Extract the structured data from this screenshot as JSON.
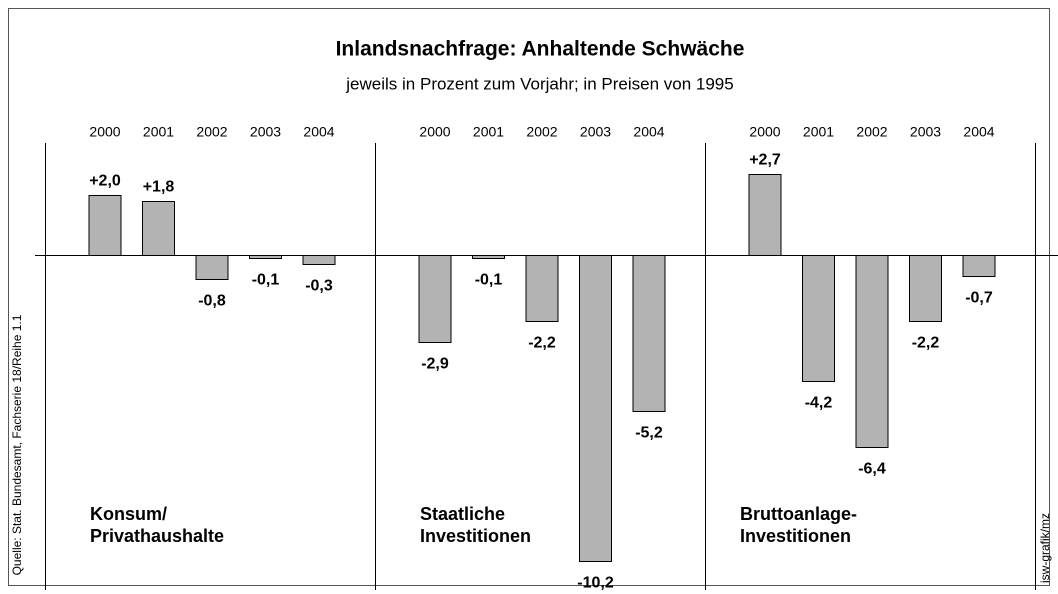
{
  "title": "Inlandsnachfrage: Anhaltende Schwäche",
  "subtitle": "jeweils in Prozent zum Vorjahr; in Preisen von 1995",
  "source": "Quelle: Stat. Bundesamt, Fachserie 18/Reihe 1.1",
  "credit": "isw-grafik/mz",
  "chart_data": [
    {
      "type": "bar",
      "label": [
        "Konsum/",
        "Privathaushalte"
      ],
      "color": "#b3b3b3",
      "categories": [
        "2000",
        "2001",
        "2002",
        "2003",
        "2004"
      ],
      "values": [
        2.0,
        1.8,
        -0.8,
        -0.1,
        -0.3
      ],
      "value_labels": [
        "+2,0",
        "+1,8",
        "-0,8",
        "-0,1",
        "-0,3"
      ]
    },
    {
      "type": "bar",
      "label": [
        "Staatliche",
        "Investitionen"
      ],
      "color": "#b3b3b3",
      "categories": [
        "2000",
        "2001",
        "2002",
        "2003",
        "2004"
      ],
      "values": [
        -2.9,
        -0.1,
        -2.2,
        -10.2,
        -5.2
      ],
      "value_labels": [
        "-2,9",
        "-0,1",
        "-2,2",
        "-10,2",
        "-5,2"
      ]
    },
    {
      "type": "bar",
      "label": [
        "Bruttoanlage-",
        "Investitionen"
      ],
      "color": "#b3b3b3",
      "categories": [
        "2000",
        "2001",
        "2002",
        "2003",
        "2004"
      ],
      "values": [
        2.7,
        -4.2,
        -6.4,
        -2.2,
        -0.7
      ],
      "value_labels": [
        "+2,7",
        "-4,2",
        "-6,4",
        "-2,2",
        "-0,7"
      ]
    }
  ]
}
